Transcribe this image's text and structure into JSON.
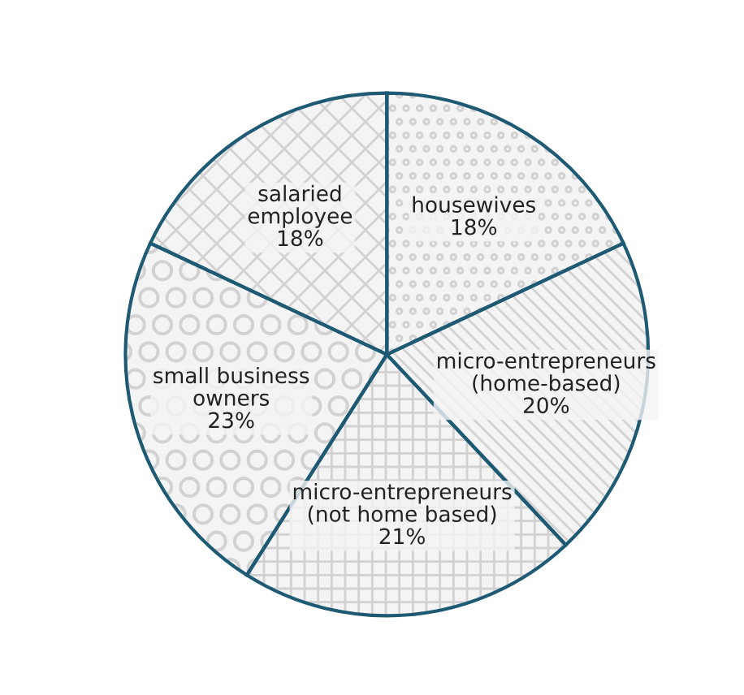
{
  "chart_data": {
    "type": "pie",
    "categories": [
      "housewives",
      "micro-entrepreneurs\n(home-based)",
      "micro-entrepreneurs\n(not home based)",
      "small business\nowners",
      "salaried\nemployee"
    ],
    "values": [
      18,
      20,
      21,
      23,
      18
    ],
    "value_labels": [
      "18%",
      "20%",
      "21%",
      "23%",
      "18%"
    ],
    "colors": [
      "#f4f4f4",
      "#f4f4f4",
      "#f4f4f4",
      "#f4f4f4",
      "#f4f4f4"
    ]
  }
}
